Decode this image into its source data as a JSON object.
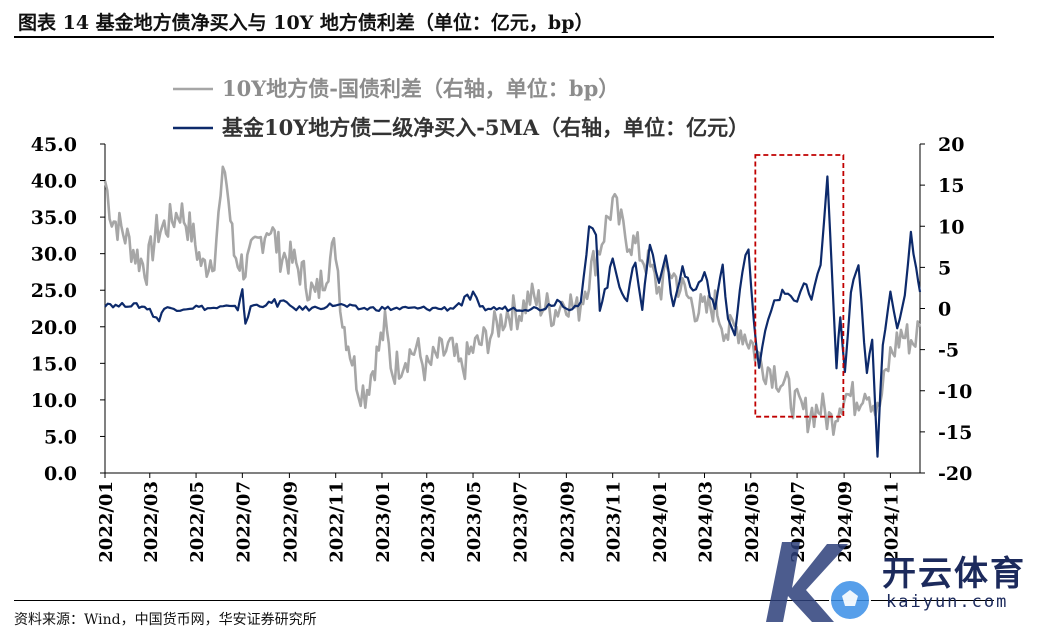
{
  "title": "图表 14 基金地方债净买入与 10Y 地方债利差（单位：亿元，bp）",
  "source": "资料来源：Wind，中国货币网，华安证券研究所",
  "watermark": {
    "name_cn": "开云体育",
    "url": "kaiyun.com"
  },
  "colors": {
    "spread": "#a6a6a6",
    "net_buy": "#0d2a6b",
    "highlight": "#c00000"
  },
  "chart_data": {
    "type": "line",
    "legend": [
      "10Y地方债-国债利差（右轴，单位：bp）",
      "基金10Y地方债二级净买入-5MA（右轴，单位：亿元）"
    ],
    "legend_position": "top",
    "left_axis": {
      "min": 0,
      "max": 45,
      "ticks": [
        "0.0",
        "5.0",
        "10.0",
        "15.0",
        "20.0",
        "25.0",
        "30.0",
        "35.0",
        "40.0",
        "45.0"
      ]
    },
    "right_axis": {
      "min": -20,
      "max": 20,
      "ticks": [
        "-20",
        "-15",
        "-10",
        "-5",
        "0",
        "5",
        "10",
        "15",
        "20"
      ]
    },
    "x_labels": [
      "2022/01",
      "2022/03",
      "2022/05",
      "2022/07",
      "2022/09",
      "2022/11",
      "2023/01",
      "2023/03",
      "2023/05",
      "2023/07",
      "2023/09",
      "2023/11",
      "2024/01",
      "2024/03",
      "2024/05",
      "2024/07",
      "2024/09",
      "2024/11"
    ],
    "x_range": [
      "2022-01-01",
      "2024-12-10"
    ],
    "highlight_box": {
      "from": "2024-05-07",
      "to": "2024-08-31",
      "left_value_top": 43.5,
      "left_value_bottom": 7.7
    },
    "series": [
      {
        "name": "10Y地方债-国债利差（右轴，单位：bp）",
        "axis": "left",
        "points": [
          [
            "2022-01-01",
            40
          ],
          [
            "2022-01-10",
            35
          ],
          [
            "2022-01-25",
            33
          ],
          [
            "2022-02-10",
            30
          ],
          [
            "2022-02-25",
            28
          ],
          [
            "2022-03-10",
            33
          ],
          [
            "2022-03-25",
            34
          ],
          [
            "2022-04-10",
            36
          ],
          [
            "2022-04-25",
            33
          ],
          [
            "2022-05-10",
            28
          ],
          [
            "2022-05-25",
            30
          ],
          [
            "2022-06-08",
            42
          ],
          [
            "2022-06-20",
            30
          ],
          [
            "2022-07-05",
            28
          ],
          [
            "2022-07-20",
            31
          ],
          [
            "2022-08-05",
            34
          ],
          [
            "2022-08-20",
            30
          ],
          [
            "2022-09-05",
            29
          ],
          [
            "2022-09-20",
            27
          ],
          [
            "2022-10-05",
            24
          ],
          [
            "2022-10-20",
            28
          ],
          [
            "2022-11-01",
            31
          ],
          [
            "2022-11-10",
            21
          ],
          [
            "2022-11-20",
            17
          ],
          [
            "2022-12-01",
            12
          ],
          [
            "2022-12-10",
            11
          ],
          [
            "2022-12-25",
            16
          ],
          [
            "2023-01-05",
            20
          ],
          [
            "2023-01-15",
            14
          ],
          [
            "2023-02-01",
            16
          ],
          [
            "2023-02-15",
            17
          ],
          [
            "2023-03-01",
            14
          ],
          [
            "2023-03-15",
            16
          ],
          [
            "2023-04-01",
            17
          ],
          [
            "2023-04-15",
            14
          ],
          [
            "2023-05-01",
            17
          ],
          [
            "2023-05-15",
            18
          ],
          [
            "2023-06-01",
            20
          ],
          [
            "2023-06-15",
            22
          ],
          [
            "2023-07-01",
            22
          ],
          [
            "2023-07-15",
            24
          ],
          [
            "2023-08-01",
            23
          ],
          [
            "2023-08-15",
            22
          ],
          [
            "2023-09-01",
            24
          ],
          [
            "2023-09-15",
            22
          ],
          [
            "2023-10-01",
            27
          ],
          [
            "2023-10-15",
            31
          ],
          [
            "2023-11-01",
            37
          ],
          [
            "2023-11-15",
            33
          ],
          [
            "2023-12-01",
            31
          ],
          [
            "2023-12-15",
            29
          ],
          [
            "2024-01-01",
            25
          ],
          [
            "2024-01-15",
            28
          ],
          [
            "2024-02-01",
            25
          ],
          [
            "2024-02-15",
            23
          ],
          [
            "2024-03-01",
            22
          ],
          [
            "2024-03-15",
            23
          ],
          [
            "2024-04-01",
            19
          ],
          [
            "2024-04-15",
            20
          ],
          [
            "2024-05-01",
            18
          ],
          [
            "2024-05-15",
            15
          ],
          [
            "2024-06-01",
            14
          ],
          [
            "2024-06-15",
            12
          ],
          [
            "2024-07-01",
            9
          ],
          [
            "2024-07-15",
            8
          ],
          [
            "2024-08-01",
            9
          ],
          [
            "2024-08-15",
            7
          ],
          [
            "2024-09-01",
            11
          ],
          [
            "2024-09-15",
            10
          ],
          [
            "2024-10-01",
            12
          ],
          [
            "2024-10-15",
            8
          ],
          [
            "2024-11-01",
            16
          ],
          [
            "2024-11-15",
            19
          ],
          [
            "2024-12-01",
            18
          ],
          [
            "2024-12-10",
            20
          ]
        ]
      },
      {
        "name": "基金10Y地方债二级净买入-5MA（右轴，单位：亿元）",
        "axis": "right",
        "points": [
          [
            "2022-01-01",
            0.8
          ],
          [
            "2022-01-15",
            0.3
          ],
          [
            "2022-02-01",
            0.5
          ],
          [
            "2022-02-15",
            0.3
          ],
          [
            "2022-03-01",
            0
          ],
          [
            "2022-03-10",
            -1.5
          ],
          [
            "2022-03-20",
            0
          ],
          [
            "2022-04-10",
            0
          ],
          [
            "2022-05-01",
            0.2
          ],
          [
            "2022-05-20",
            0
          ],
          [
            "2022-06-10",
            0.2
          ],
          [
            "2022-06-25",
            0
          ],
          [
            "2022-07-01",
            2.5
          ],
          [
            "2022-07-05",
            -2.3
          ],
          [
            "2022-07-12",
            0.3
          ],
          [
            "2022-08-01",
            0.5
          ],
          [
            "2022-08-20",
            0.8
          ],
          [
            "2022-09-10",
            0
          ],
          [
            "2022-10-01",
            0
          ],
          [
            "2022-11-01",
            0.5
          ],
          [
            "2022-12-01",
            0
          ],
          [
            "2023-01-01",
            0
          ],
          [
            "2023-02-01",
            0
          ],
          [
            "2023-03-01",
            0
          ],
          [
            "2023-04-01",
            0
          ],
          [
            "2023-05-01",
            1.5
          ],
          [
            "2023-05-10",
            0
          ],
          [
            "2023-06-01",
            0
          ],
          [
            "2023-07-01",
            0
          ],
          [
            "2023-08-01",
            0
          ],
          [
            "2023-08-20",
            1
          ],
          [
            "2023-09-05",
            0
          ],
          [
            "2023-09-20",
            0.5
          ],
          [
            "2023-10-01",
            9.5
          ],
          [
            "2023-10-10",
            9.5
          ],
          [
            "2023-10-15",
            0
          ],
          [
            "2023-10-25",
            3
          ],
          [
            "2023-11-01",
            6
          ],
          [
            "2023-11-10",
            3
          ],
          [
            "2023-11-20",
            1
          ],
          [
            "2023-12-01",
            6
          ],
          [
            "2023-12-10",
            0
          ],
          [
            "2023-12-20",
            8
          ],
          [
            "2024-01-01",
            3
          ],
          [
            "2024-01-10",
            7
          ],
          [
            "2024-01-20",
            0
          ],
          [
            "2024-02-01",
            5
          ],
          [
            "2024-02-15",
            2
          ],
          [
            "2024-03-01",
            4
          ],
          [
            "2024-03-15",
            0
          ],
          [
            "2024-03-25",
            5
          ],
          [
            "2024-04-01",
            -1
          ],
          [
            "2024-04-10",
            -3
          ],
          [
            "2024-04-20",
            5
          ],
          [
            "2024-04-28",
            7
          ],
          [
            "2024-05-05",
            -2
          ],
          [
            "2024-05-12",
            -7
          ],
          [
            "2024-05-20",
            -3
          ],
          [
            "2024-06-01",
            1
          ],
          [
            "2024-06-15",
            2
          ],
          [
            "2024-07-01",
            1
          ],
          [
            "2024-07-10",
            3
          ],
          [
            "2024-07-20",
            1
          ],
          [
            "2024-08-01",
            5
          ],
          [
            "2024-08-10",
            16.5
          ],
          [
            "2024-08-17",
            2
          ],
          [
            "2024-08-22",
            -7
          ],
          [
            "2024-08-27",
            -1
          ],
          [
            "2024-09-02",
            -8
          ],
          [
            "2024-09-10",
            2
          ],
          [
            "2024-09-20",
            5
          ],
          [
            "2024-10-01",
            -8
          ],
          [
            "2024-10-08",
            -4
          ],
          [
            "2024-10-15",
            -18
          ],
          [
            "2024-10-22",
            -4
          ],
          [
            "2024-11-01",
            2
          ],
          [
            "2024-11-10",
            -2
          ],
          [
            "2024-11-20",
            1
          ],
          [
            "2024-11-28",
            9
          ],
          [
            "2024-12-05",
            5
          ],
          [
            "2024-12-10",
            2
          ]
        ]
      }
    ]
  }
}
